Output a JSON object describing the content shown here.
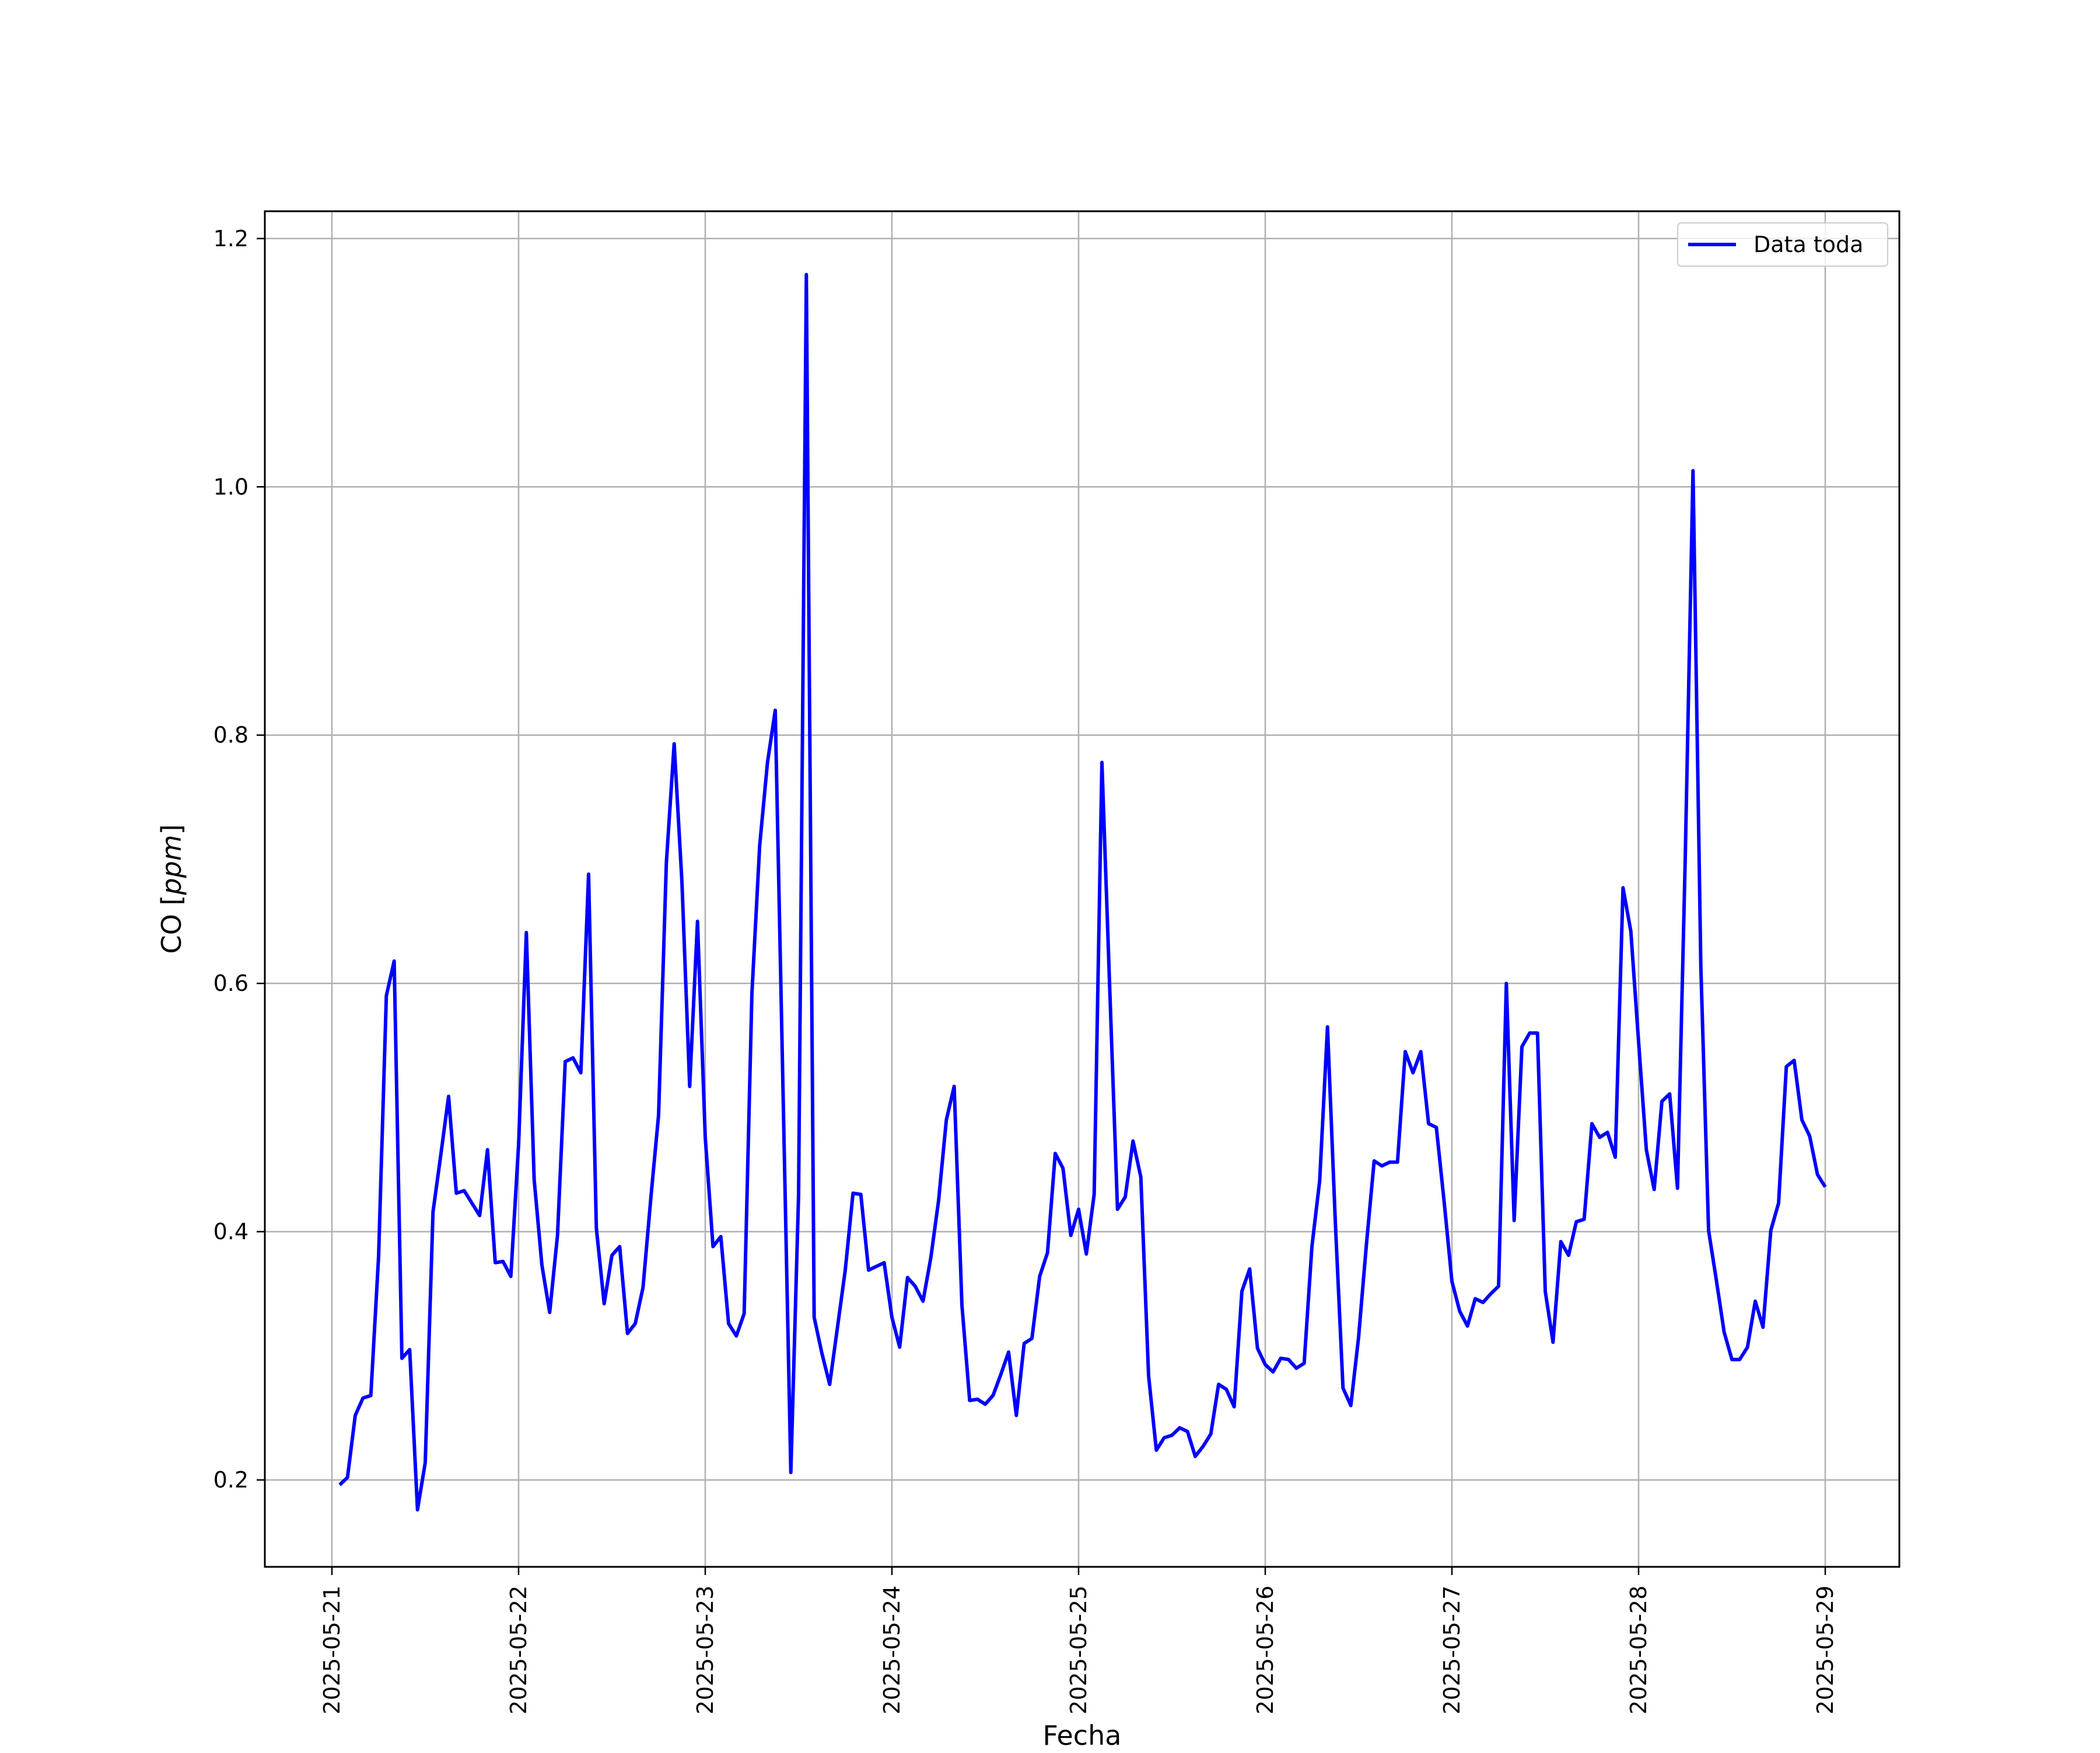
{
  "chart_data": {
    "type": "line",
    "title": "",
    "xlabel": "Fecha",
    "ylabel": "CO [ppm]",
    "ylabel_parts": {
      "plain": "CO ",
      "open": "[",
      "unit": "ppm",
      "close": "]"
    },
    "x_start": "2025-05-21",
    "x_end": "2025-05-29",
    "x_ticks": [
      "2025-05-21",
      "2025-05-22",
      "2025-05-23",
      "2025-05-24",
      "2025-05-25",
      "2025-05-26",
      "2025-05-27",
      "2025-05-28",
      "2025-05-29"
    ],
    "y_ticks": [
      "0.2",
      "0.4",
      "0.6",
      "0.8",
      "1.0",
      "1.2"
    ],
    "ylim": [
      0.13,
      1.222
    ],
    "grid": true,
    "legend_position": "top-right",
    "colors": {
      "line": "#0000ff",
      "grid": "#b0b0b0",
      "axis": "#000000"
    },
    "series": [
      {
        "name": "Data toda",
        "x": [
          "2025-05-21 01:00",
          "2025-05-21 02:00",
          "2025-05-21 03:00",
          "2025-05-21 04:00",
          "2025-05-21 05:00",
          "2025-05-21 06:00",
          "2025-05-21 07:00",
          "2025-05-21 08:00",
          "2025-05-21 09:00",
          "2025-05-21 10:00",
          "2025-05-21 11:00",
          "2025-05-21 12:00",
          "2025-05-21 13:00",
          "2025-05-21 14:00",
          "2025-05-21 15:00",
          "2025-05-21 16:00",
          "2025-05-21 17:00",
          "2025-05-21 18:00",
          "2025-05-21 19:00",
          "2025-05-21 20:00",
          "2025-05-21 21:00",
          "2025-05-21 22:00",
          "2025-05-21 23:00",
          "2025-05-22 00:00",
          "2025-05-22 01:00",
          "2025-05-22 02:00",
          "2025-05-22 03:00",
          "2025-05-22 04:00",
          "2025-05-22 05:00",
          "2025-05-22 06:00",
          "2025-05-22 07:00",
          "2025-05-22 08:00",
          "2025-05-22 09:00",
          "2025-05-22 10:00",
          "2025-05-22 11:00",
          "2025-05-22 12:00",
          "2025-05-22 13:00",
          "2025-05-22 14:00",
          "2025-05-22 15:00",
          "2025-05-22 16:00",
          "2025-05-22 17:00",
          "2025-05-22 18:00",
          "2025-05-22 19:00",
          "2025-05-22 20:00",
          "2025-05-22 21:00",
          "2025-05-22 22:00",
          "2025-05-22 23:00",
          "2025-05-23 00:00",
          "2025-05-23 01:00",
          "2025-05-23 02:00",
          "2025-05-23 03:00",
          "2025-05-23 04:00",
          "2025-05-23 05:00",
          "2025-05-23 06:00",
          "2025-05-23 07:00",
          "2025-05-23 08:00",
          "2025-05-23 09:00",
          "2025-05-23 10:00",
          "2025-05-23 11:00",
          "2025-05-23 12:00",
          "2025-05-23 13:00",
          "2025-05-23 14:00",
          "2025-05-23 15:00",
          "2025-05-23 16:00",
          "2025-05-23 17:00",
          "2025-05-23 18:00",
          "2025-05-23 19:00",
          "2025-05-23 20:00",
          "2025-05-23 21:00",
          "2025-05-23 22:00",
          "2025-05-23 23:00",
          "2025-05-24 00:00",
          "2025-05-24 01:00",
          "2025-05-24 02:00",
          "2025-05-24 03:00",
          "2025-05-24 04:00",
          "2025-05-24 05:00",
          "2025-05-24 06:00",
          "2025-05-24 07:00",
          "2025-05-24 08:00",
          "2025-05-24 09:00",
          "2025-05-24 10:00",
          "2025-05-24 11:00",
          "2025-05-24 12:00",
          "2025-05-24 13:00",
          "2025-05-24 14:00",
          "2025-05-24 15:00",
          "2025-05-24 16:00",
          "2025-05-24 17:00",
          "2025-05-24 18:00",
          "2025-05-24 19:00",
          "2025-05-24 20:00",
          "2025-05-24 21:00",
          "2025-05-24 22:00",
          "2025-05-24 23:00",
          "2025-05-25 00:00",
          "2025-05-25 01:00",
          "2025-05-25 02:00",
          "2025-05-25 03:00",
          "2025-05-25 04:00",
          "2025-05-25 05:00",
          "2025-05-25 06:00",
          "2025-05-25 07:00",
          "2025-05-25 08:00",
          "2025-05-25 09:00",
          "2025-05-25 10:00",
          "2025-05-25 11:00",
          "2025-05-25 12:00",
          "2025-05-25 13:00",
          "2025-05-25 14:00",
          "2025-05-25 15:00",
          "2025-05-25 16:00",
          "2025-05-25 17:00",
          "2025-05-25 18:00",
          "2025-05-25 19:00",
          "2025-05-25 20:00",
          "2025-05-25 21:00",
          "2025-05-25 22:00",
          "2025-05-25 23:00",
          "2025-05-26 00:00",
          "2025-05-26 01:00",
          "2025-05-26 02:00",
          "2025-05-26 03:00",
          "2025-05-26 04:00",
          "2025-05-26 05:00",
          "2025-05-26 06:00",
          "2025-05-26 07:00",
          "2025-05-26 08:00",
          "2025-05-26 09:00",
          "2025-05-26 10:00",
          "2025-05-26 11:00",
          "2025-05-26 12:00",
          "2025-05-26 13:00",
          "2025-05-26 14:00",
          "2025-05-26 15:00",
          "2025-05-26 16:00",
          "2025-05-26 17:00",
          "2025-05-26 18:00",
          "2025-05-26 19:00",
          "2025-05-26 20:00",
          "2025-05-26 21:00",
          "2025-05-26 22:00",
          "2025-05-26 23:00",
          "2025-05-27 00:00",
          "2025-05-27 01:00",
          "2025-05-27 02:00",
          "2025-05-27 03:00",
          "2025-05-27 04:00",
          "2025-05-27 05:00",
          "2025-05-27 06:00",
          "2025-05-27 07:00",
          "2025-05-27 08:00",
          "2025-05-27 09:00",
          "2025-05-27 10:00",
          "2025-05-27 11:00",
          "2025-05-27 12:00",
          "2025-05-27 13:00",
          "2025-05-27 14:00",
          "2025-05-27 15:00",
          "2025-05-27 16:00",
          "2025-05-27 17:00",
          "2025-05-27 18:00",
          "2025-05-27 19:00",
          "2025-05-27 20:00",
          "2025-05-27 21:00",
          "2025-05-27 22:00",
          "2025-05-27 23:00",
          "2025-05-28 00:00",
          "2025-05-28 01:00",
          "2025-05-28 02:00",
          "2025-05-28 03:00",
          "2025-05-28 04:00",
          "2025-05-28 05:00",
          "2025-05-28 06:00",
          "2025-05-28 07:00",
          "2025-05-28 08:00",
          "2025-05-28 09:00",
          "2025-05-28 10:00",
          "2025-05-28 11:00",
          "2025-05-28 12:00",
          "2025-05-28 13:00",
          "2025-05-28 14:00",
          "2025-05-28 15:00",
          "2025-05-28 16:00",
          "2025-05-28 17:00",
          "2025-05-28 18:00",
          "2025-05-28 19:00",
          "2025-05-28 20:00",
          "2025-05-28 21:00",
          "2025-05-28 22:00",
          "2025-05-28 23:00",
          "2025-05-29 00:00"
        ],
        "y": [
          0.196,
          0.202,
          0.252,
          0.266,
          0.268,
          0.38,
          0.59,
          0.618,
          0.298,
          0.305,
          0.176,
          0.214,
          0.416,
          0.462,
          0.509,
          0.431,
          0.433,
          0.423,
          0.413,
          0.466,
          0.375,
          0.376,
          0.364,
          0.47,
          0.641,
          0.442,
          0.373,
          0.335,
          0.397,
          0.537,
          0.54,
          0.528,
          0.688,
          0.403,
          0.342,
          0.381,
          0.388,
          0.318,
          0.326,
          0.355,
          0.427,
          0.494,
          0.697,
          0.793,
          0.682,
          0.517,
          0.65,
          0.476,
          0.388,
          0.396,
          0.326,
          0.316,
          0.334,
          0.592,
          0.711,
          0.778,
          0.82,
          0.514,
          0.206,
          0.43,
          1.171,
          0.331,
          0.302,
          0.277,
          0.323,
          0.369,
          0.431,
          0.43,
          0.369,
          0.372,
          0.375,
          0.331,
          0.307,
          0.363,
          0.356,
          0.344,
          0.379,
          0.425,
          0.49,
          0.517,
          0.341,
          0.264,
          0.265,
          0.261,
          0.268,
          0.285,
          0.303,
          0.252,
          0.31,
          0.314,
          0.364,
          0.383,
          0.463,
          0.451,
          0.397,
          0.418,
          0.382,
          0.43,
          0.778,
          0.597,
          0.418,
          0.428,
          0.473,
          0.444,
          0.284,
          0.224,
          0.234,
          0.236,
          0.242,
          0.239,
          0.219,
          0.227,
          0.237,
          0.277,
          0.273,
          0.259,
          0.352,
          0.37,
          0.306,
          0.293,
          0.287,
          0.298,
          0.297,
          0.29,
          0.294,
          0.388,
          0.441,
          0.565,
          0.409,
          0.274,
          0.26,
          0.315,
          0.389,
          0.457,
          0.453,
          0.456,
          0.456,
          0.545,
          0.528,
          0.545,
          0.487,
          0.484,
          0.424,
          0.36,
          0.336,
          0.324,
          0.346,
          0.343,
          0.35,
          0.356,
          0.6,
          0.409,
          0.549,
          0.56,
          0.56,
          0.352,
          0.311,
          0.392,
          0.381,
          0.408,
          0.41,
          0.487,
          0.476,
          0.48,
          0.46,
          0.677,
          0.642,
          0.553,
          0.466,
          0.434,
          0.505,
          0.511,
          0.435,
          0.701,
          1.013,
          0.614,
          0.401,
          0.361,
          0.319,
          0.297,
          0.297,
          0.307,
          0.344,
          0.323,
          0.401,
          0.423,
          0.533,
          0.538,
          0.49,
          0.477,
          0.446,
          0.436
        ]
      }
    ]
  }
}
